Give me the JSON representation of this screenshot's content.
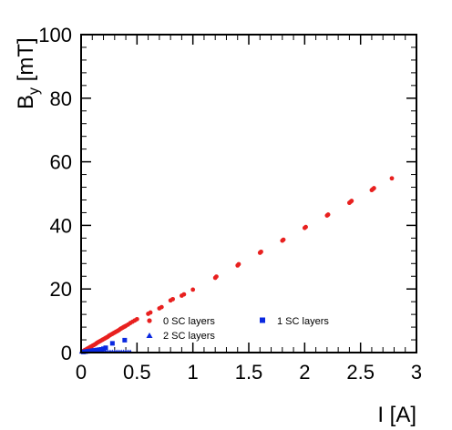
{
  "chart_data": {
    "type": "scatter",
    "xlabel": "I [A]",
    "ylabel_main": "B",
    "ylabel_sub": "y",
    "ylabel_unit": " [mT]",
    "xlim": [
      0,
      3
    ],
    "ylim": [
      0,
      100
    ],
    "x_ticks": [
      0,
      0.5,
      1,
      1.5,
      2,
      2.5,
      3
    ],
    "x_tick_labels": [
      "0",
      "0.5",
      "1",
      "1.5",
      "2",
      "2.5",
      "3"
    ],
    "y_ticks": [
      0,
      20,
      40,
      60,
      80,
      100
    ],
    "y_tick_labels": [
      "0",
      "20",
      "40",
      "60",
      "80",
      "100"
    ],
    "grid": false,
    "legend_position": "bottom-right",
    "series": [
      {
        "name": "0 SC layers",
        "color": "#e8201f",
        "marker": "circle",
        "points": [
          [
            0.01,
            0.3
          ],
          [
            0.02,
            0.5
          ],
          [
            0.03,
            0.7
          ],
          [
            0.04,
            0.9
          ],
          [
            0.05,
            1.1
          ],
          [
            0.06,
            1.3
          ],
          [
            0.07,
            1.5
          ],
          [
            0.08,
            1.7
          ],
          [
            0.09,
            1.9
          ],
          [
            0.1,
            2.1
          ],
          [
            0.11,
            2.3
          ],
          [
            0.12,
            2.5
          ],
          [
            0.13,
            2.7
          ],
          [
            0.14,
            3.0
          ],
          [
            0.15,
            3.2
          ],
          [
            0.16,
            3.4
          ],
          [
            0.17,
            3.6
          ],
          [
            0.18,
            3.8
          ],
          [
            0.19,
            4.0
          ],
          [
            0.2,
            4.2
          ],
          [
            0.21,
            4.4
          ],
          [
            0.22,
            4.6
          ],
          [
            0.23,
            4.8
          ],
          [
            0.24,
            5.0
          ],
          [
            0.25,
            5.3
          ],
          [
            0.26,
            5.5
          ],
          [
            0.27,
            5.7
          ],
          [
            0.28,
            5.9
          ],
          [
            0.29,
            6.1
          ],
          [
            0.3,
            6.3
          ],
          [
            0.31,
            6.5
          ],
          [
            0.32,
            6.7
          ],
          [
            0.33,
            6.9
          ],
          [
            0.34,
            7.1
          ],
          [
            0.35,
            7.4
          ],
          [
            0.36,
            7.6
          ],
          [
            0.37,
            7.8
          ],
          [
            0.38,
            8.0
          ],
          [
            0.39,
            8.2
          ],
          [
            0.4,
            8.4
          ],
          [
            0.42,
            8.8
          ],
          [
            0.44,
            9.3
          ],
          [
            0.46,
            9.7
          ],
          [
            0.48,
            10.1
          ],
          [
            0.5,
            10.5
          ],
          [
            0.6,
            12.2
          ],
          [
            0.62,
            12.6
          ],
          [
            0.7,
            13.9
          ],
          [
            0.72,
            14.3
          ],
          [
            0.8,
            16.4
          ],
          [
            0.82,
            16.8
          ],
          [
            0.9,
            17.9
          ],
          [
            0.92,
            18.3
          ],
          [
            1.0,
            19.8
          ],
          [
            1.2,
            23.5
          ],
          [
            1.21,
            23.9
          ],
          [
            1.4,
            27.4
          ],
          [
            1.41,
            27.8
          ],
          [
            1.6,
            31.4
          ],
          [
            1.61,
            31.7
          ],
          [
            1.8,
            35.2
          ],
          [
            1.81,
            35.5
          ],
          [
            2.0,
            39.2
          ],
          [
            2.01,
            39.5
          ],
          [
            2.2,
            43.1
          ],
          [
            2.21,
            43.4
          ],
          [
            2.4,
            47.1
          ],
          [
            2.41,
            47.4
          ],
          [
            2.42,
            47.7
          ],
          [
            2.6,
            51.1
          ],
          [
            2.61,
            51.4
          ],
          [
            2.62,
            51.7
          ],
          [
            2.78,
            54.8
          ]
        ]
      },
      {
        "name": "1 SC layers",
        "color": "#0a28e0",
        "marker": "square",
        "points": [
          [
            0.02,
            0.2
          ],
          [
            0.04,
            0.3
          ],
          [
            0.06,
            0.4
          ],
          [
            0.08,
            0.5
          ],
          [
            0.1,
            0.6
          ],
          [
            0.12,
            0.7
          ],
          [
            0.14,
            0.8
          ],
          [
            0.16,
            0.9
          ],
          [
            0.18,
            1.0
          ],
          [
            0.2,
            1.2
          ],
          [
            0.22,
            1.5
          ],
          [
            0.28,
            2.9
          ],
          [
            0.39,
            3.9
          ]
        ]
      },
      {
        "name": "2 SC layers",
        "color": "#0a28e0",
        "marker": "triangle",
        "points": [
          [
            0.0,
            0.1
          ],
          [
            0.02,
            0.1
          ],
          [
            0.04,
            0.2
          ],
          [
            0.06,
            0.2
          ],
          [
            0.08,
            0.3
          ],
          [
            0.1,
            0.3
          ],
          [
            0.12,
            0.3
          ],
          [
            0.14,
            0.3
          ],
          [
            0.16,
            0.3
          ],
          [
            0.18,
            0.3
          ],
          [
            0.2,
            0.3
          ],
          [
            0.22,
            0.3
          ],
          [
            0.24,
            0.3
          ],
          [
            0.26,
            0.3
          ],
          [
            0.28,
            0.3
          ],
          [
            0.3,
            0.3
          ],
          [
            0.32,
            0.3
          ],
          [
            0.34,
            0.3
          ],
          [
            0.36,
            0.3
          ],
          [
            0.38,
            0.3
          ],
          [
            0.4,
            0.3
          ],
          [
            0.42,
            0.3
          ],
          [
            0.44,
            0.3
          ]
        ]
      }
    ]
  }
}
